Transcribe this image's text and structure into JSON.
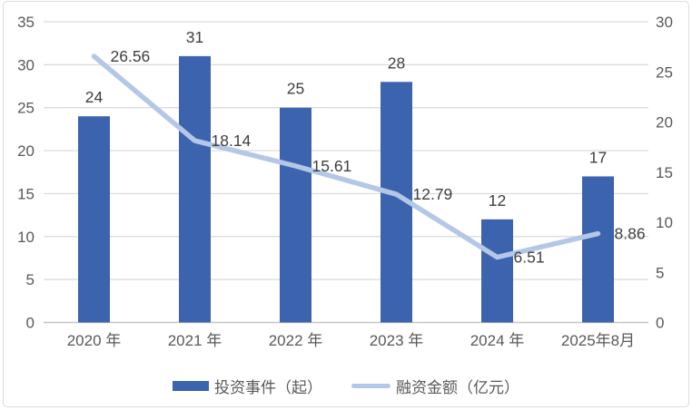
{
  "chart_data": {
    "type": "bar",
    "subtype": "combo-bar-line-dual-axis",
    "title": "",
    "categories": [
      "2020 年",
      "2021 年",
      "2022 年",
      "2023 年",
      "2024 年",
      "2025年8月"
    ],
    "series": [
      {
        "name": "投资事件（起）",
        "type": "bar",
        "axis": "left",
        "values": [
          24,
          31,
          25,
          28,
          12,
          17
        ],
        "data_labels": [
          "24",
          "31",
          "25",
          "28",
          "12",
          "17"
        ],
        "color": "#3C63AD"
      },
      {
        "name": "融资金额（亿元）",
        "type": "line",
        "axis": "right",
        "values": [
          26.56,
          18.14,
          15.61,
          12.79,
          6.51,
          8.86
        ],
        "data_labels": [
          "26.56",
          "18.14",
          "15.61",
          "12.79",
          "6.51",
          "8.86"
        ],
        "color": "#B4C7E7"
      }
    ],
    "left_axis": {
      "min": 0,
      "max": 35,
      "step": 5,
      "tick_labels": [
        "0",
        "5",
        "10",
        "15",
        "20",
        "25",
        "30",
        "35"
      ]
    },
    "right_axis": {
      "min": 0,
      "max": 30,
      "step": 5,
      "tick_labels": [
        "0",
        "5",
        "10",
        "15",
        "20",
        "25",
        "30"
      ]
    },
    "grid": true,
    "legend_position": "bottom",
    "colors": {
      "grid": "#D9D9D9",
      "axis_line": "#C6C6C6",
      "axis_text": "#595959",
      "data_label_text": "#404040",
      "background": "#FFFFFF",
      "border": "#DCDCDC"
    }
  },
  "legend": {
    "items": [
      {
        "label": "投资事件（起）",
        "swatch": "bar",
        "color": "#3C63AD"
      },
      {
        "label": "融资金额（亿元）",
        "swatch": "line",
        "color": "#B4C7E7"
      }
    ]
  }
}
